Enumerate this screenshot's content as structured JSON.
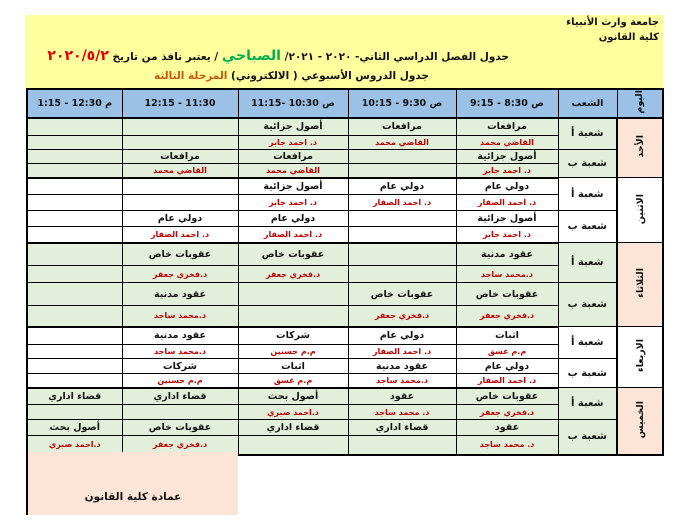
{
  "header": {
    "university": "جامعة وارث الأنبياء",
    "college": "كلية القانون",
    "title_part1": "جدول الفصل الدراسي الثاني- ٢٠٢٠ - ٢٠٢١/ ",
    "title_shift": "الصباحي",
    "title_part2": " / يعتبر نافذ من تاريخ ",
    "title_date": "٢٠٢٠/٥/٢",
    "subtitle": "جدول الدروس الأسبوعي ( الالكتروني) ",
    "stage": "المرحلة الثالثة"
  },
  "colors": {
    "header_band": "#ffff9e",
    "table_header": "#9bc2e6",
    "row_green": "#e2efda",
    "day_peach": "#fce4d6",
    "teacher_red": "#c00000",
    "shift_green": "#00b050",
    "date_red": "#e00000",
    "stage_orange": "#c65911"
  },
  "table": {
    "col_day": "اليوم",
    "col_section": "الشعب",
    "slots": [
      "ص 8:30 - 9:15",
      "ص 9:30 - 10:15",
      "ص 10:30 -11:15",
      "11:30 - 12:15",
      "م 12:30 - 1:15"
    ],
    "days": [
      {
        "name": "الأحد",
        "sections": [
          {
            "label": "شعبة أ",
            "cells": [
              {
                "subject": "مرافعات",
                "teacher": "القاضي محمد"
              },
              {
                "subject": "مرافعات",
                "teacher": "القاضي محمد"
              },
              {
                "subject": "أصول جزائية",
                "teacher": "د. احمد جابر"
              },
              {
                "subject": "",
                "teacher": ""
              },
              {
                "subject": "",
                "teacher": ""
              }
            ]
          },
          {
            "label": "شعبة ب",
            "cells": [
              {
                "subject": "أصول جزائية",
                "teacher": "د. احمد جابر"
              },
              {
                "subject": "",
                "teacher": ""
              },
              {
                "subject": "مرافعات",
                "teacher": "القاضي محمد"
              },
              {
                "subject": "مرافعات",
                "teacher": "القاضي محمد"
              },
              {
                "subject": "",
                "teacher": ""
              }
            ]
          }
        ]
      },
      {
        "name": "الاثنين",
        "sections": [
          {
            "label": "شعبة أ",
            "cells": [
              {
                "subject": "دولي عام",
                "teacher": "د. احمد الصفار"
              },
              {
                "subject": "دولي عام",
                "teacher": "د. احمد الصفار"
              },
              {
                "subject": "أصول جزائية",
                "teacher": "د. احمد جابر"
              },
              {
                "subject": "",
                "teacher": ""
              },
              {
                "subject": "",
                "teacher": ""
              }
            ]
          },
          {
            "label": "شعبة ب",
            "cells": [
              {
                "subject": "أصول جزائية",
                "teacher": "د. احمد جابر"
              },
              {
                "subject": "",
                "teacher": ""
              },
              {
                "subject": "دولي عام",
                "teacher": "د. احمد الصفار"
              },
              {
                "subject": "دولي عام",
                "teacher": "د. احمد الصفار"
              },
              {
                "subject": "",
                "teacher": ""
              }
            ]
          }
        ]
      },
      {
        "name": "الثلاثاء",
        "sections": [
          {
            "label": "شعبة أ",
            "cells": [
              {
                "subject": "عقود مدنية",
                "teacher": "د.محمد ساجد"
              },
              {
                "subject": "",
                "teacher": ""
              },
              {
                "subject": "عقوبات خاص",
                "teacher": "د.فخري جعفر"
              },
              {
                "subject": "عقوبات خاص",
                "teacher": "د.فخري جعفر"
              },
              {
                "subject": "",
                "teacher": ""
              }
            ]
          },
          {
            "label": "شعبة ب",
            "cells": [
              {
                "subject": "عقوبات خاص",
                "teacher": "د.فخري جعفر"
              },
              {
                "subject": "عقوبات خاص",
                "teacher": "د.فخري جعفر"
              },
              {
                "subject": "",
                "teacher": ""
              },
              {
                "subject": "عقود مدنية",
                "teacher": "د.محمد ساجد"
              },
              {
                "subject": "",
                "teacher": ""
              }
            ]
          }
        ]
      },
      {
        "name": "الاربعاء",
        "sections": [
          {
            "label": "شعبة أ",
            "cells": [
              {
                "subject": "اثبات",
                "teacher": "م.م غسق"
              },
              {
                "subject": "دولي عام",
                "teacher": "د. احمد الصفار"
              },
              {
                "subject": "شركات",
                "teacher": "م.م حسنين"
              },
              {
                "subject": "عقود مدنية",
                "teacher": "د.محمد ساجد"
              },
              {
                "subject": "",
                "teacher": ""
              }
            ]
          },
          {
            "label": "شعبة ب",
            "cells": [
              {
                "subject": "دولي عام",
                "teacher": "د. احمد الصفار"
              },
              {
                "subject": "عقود مدنية",
                "teacher": "د.محمد ساجد"
              },
              {
                "subject": "اثبات",
                "teacher": "م.م غسق"
              },
              {
                "subject": "شركات",
                "teacher": "م.م حسنين"
              },
              {
                "subject": "",
                "teacher": ""
              }
            ]
          }
        ]
      },
      {
        "name": "الخميس",
        "sections": [
          {
            "label": "شعبة أ",
            "cells": [
              {
                "subject": "عقوبات خاص",
                "teacher": "د.فخري جعفر"
              },
              {
                "subject": "عقود",
                "teacher": "د. محمد ساجد"
              },
              {
                "subject": "أصول بحث",
                "teacher": "د.احمد صبري"
              },
              {
                "subject": "قضاء اداري",
                "teacher": ""
              },
              {
                "subject": "قضاء اداري",
                "teacher": ""
              }
            ]
          },
          {
            "label": "شعبة ب",
            "cells": [
              {
                "subject": "عقود",
                "teacher": "د. محمد ساجد"
              },
              {
                "subject": "قضاء اداري",
                "teacher": ""
              },
              {
                "subject": "قضاء اداري",
                "teacher": ""
              },
              {
                "subject": "عقوبات خاص",
                "teacher": "د.فخري جعفر"
              },
              {
                "subject": "أصول بحث",
                "teacher": "د.احمد صبري"
              }
            ]
          }
        ]
      }
    ]
  },
  "footer": {
    "signature": "عمادة كلية القانون"
  }
}
